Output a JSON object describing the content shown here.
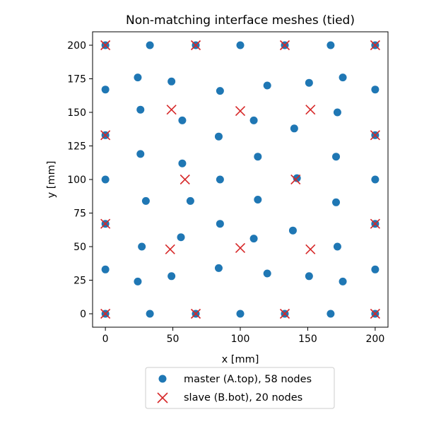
{
  "chart_data": {
    "type": "scatter",
    "title": "Non-matching interface meshes (tied)",
    "xlabel": "x [mm]",
    "ylabel": "y [mm]",
    "xlim": [
      -9.5,
      209.5
    ],
    "ylim": [
      -10,
      210
    ],
    "xticks": [
      0,
      50,
      100,
      150,
      200
    ],
    "yticks": [
      0,
      25,
      50,
      75,
      100,
      125,
      150,
      175,
      200
    ],
    "grid": false,
    "legend_position": "bottom-center",
    "series": [
      {
        "name": "master (A.top), 58 nodes",
        "marker": "circle",
        "color": "#1f77b4",
        "points": [
          [
            0,
            200
          ],
          [
            33,
            200
          ],
          [
            67,
            200
          ],
          [
            100,
            200
          ],
          [
            133,
            200
          ],
          [
            167,
            200
          ],
          [
            200,
            200
          ],
          [
            24,
            176
          ],
          [
            49,
            173
          ],
          [
            85,
            166
          ],
          [
            120,
            170
          ],
          [
            151,
            172
          ],
          [
            176,
            176
          ],
          [
            0,
            167
          ],
          [
            200,
            167
          ],
          [
            26,
            152
          ],
          [
            57,
            144
          ],
          [
            110,
            144
          ],
          [
            140,
            138
          ],
          [
            172,
            150
          ],
          [
            84,
            132
          ],
          [
            0,
            133
          ],
          [
            200,
            133
          ],
          [
            26,
            119
          ],
          [
            57,
            112
          ],
          [
            113,
            117
          ],
          [
            171,
            117
          ],
          [
            0,
            100
          ],
          [
            85,
            100
          ],
          [
            142,
            101
          ],
          [
            200,
            100
          ],
          [
            30,
            84
          ],
          [
            63,
            84
          ],
          [
            113,
            85
          ],
          [
            171,
            83
          ],
          [
            0,
            67
          ],
          [
            85,
            67
          ],
          [
            200,
            67
          ],
          [
            56,
            57
          ],
          [
            110,
            56
          ],
          [
            139,
            62
          ],
          [
            172,
            50
          ],
          [
            27,
            50
          ],
          [
            0,
            33
          ],
          [
            84,
            34
          ],
          [
            200,
            33
          ],
          [
            49,
            28
          ],
          [
            120,
            30
          ],
          [
            151,
            28
          ],
          [
            24,
            24
          ],
          [
            176,
            24
          ],
          [
            0,
            0
          ],
          [
            33,
            0
          ],
          [
            67,
            0
          ],
          [
            100,
            0
          ],
          [
            133,
            0
          ],
          [
            167,
            0
          ],
          [
            200,
            0
          ]
        ]
      },
      {
        "name": "slave (B.bot), 20 nodes",
        "marker": "x",
        "color": "#d62728",
        "points": [
          [
            0,
            200
          ],
          [
            67,
            200
          ],
          [
            133,
            200
          ],
          [
            200,
            200
          ],
          [
            49,
            152
          ],
          [
            100,
            151
          ],
          [
            152,
            152
          ],
          [
            0,
            133
          ],
          [
            200,
            133
          ],
          [
            59,
            100
          ],
          [
            141,
            100
          ],
          [
            0,
            67
          ],
          [
            200,
            67
          ],
          [
            48,
            48
          ],
          [
            100,
            49
          ],
          [
            152,
            48
          ],
          [
            0,
            0
          ],
          [
            67,
            0
          ],
          [
            133,
            0
          ],
          [
            200,
            0
          ]
        ]
      }
    ]
  }
}
